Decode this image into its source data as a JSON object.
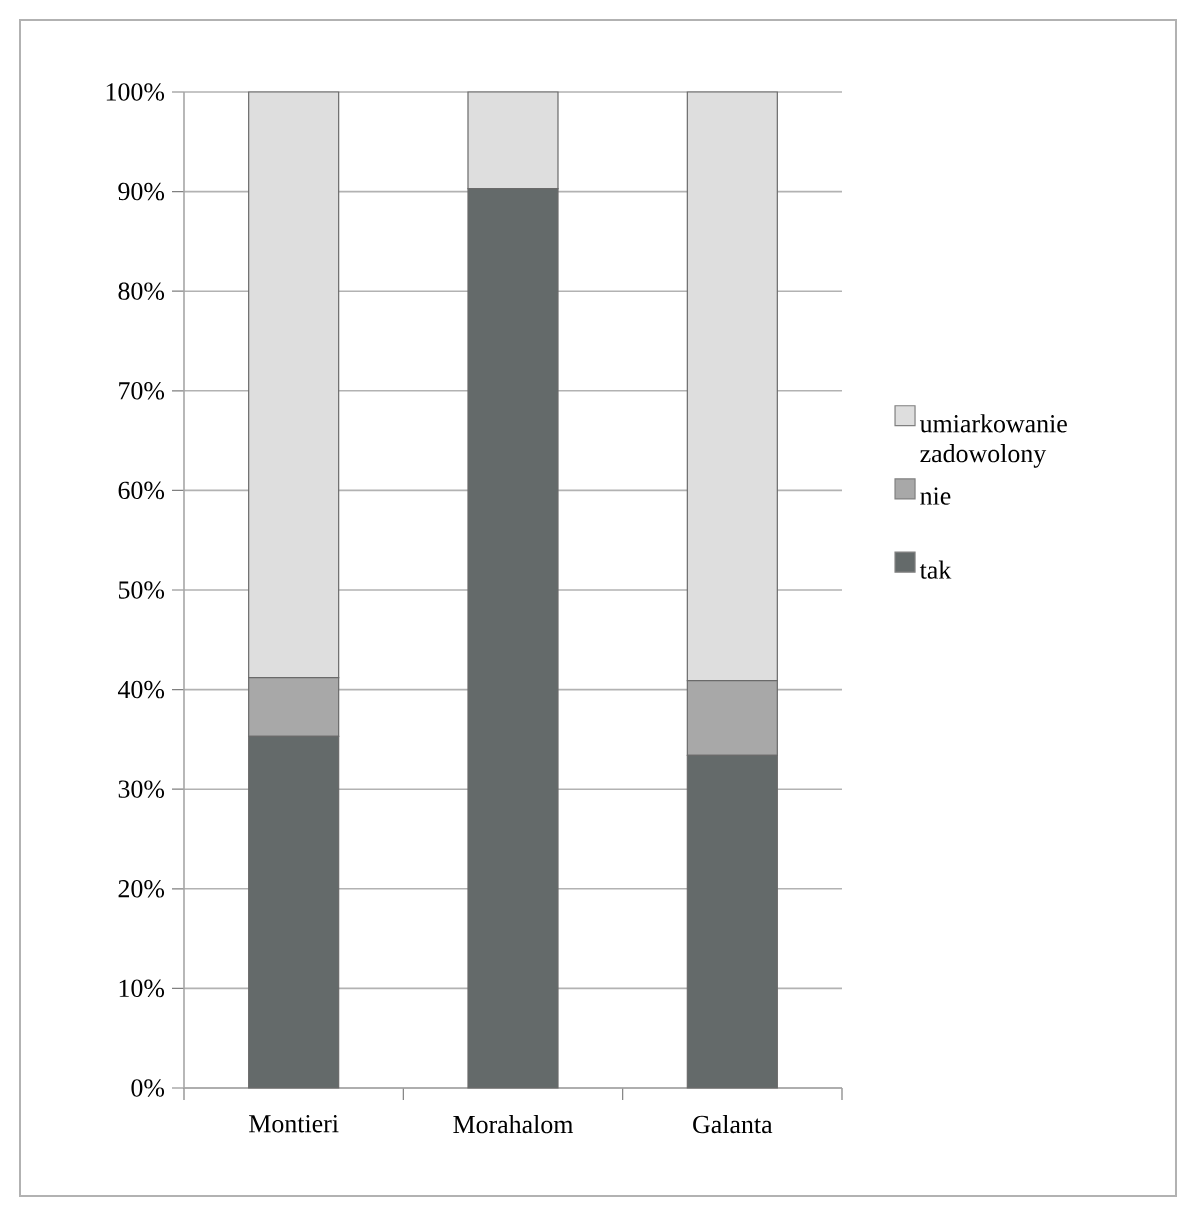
{
  "chart_data": {
    "type": "bar",
    "stacked": true,
    "categories": [
      "Montieri",
      "Morahalom",
      "Galanta"
    ],
    "series": [
      {
        "name": "tak",
        "color": "#646a6a",
        "values": [
          35.3,
          90.3,
          33.4
        ]
      },
      {
        "name": "nie",
        "color": "#a8a8a8",
        "values": [
          5.9,
          0,
          7.5
        ]
      },
      {
        "name": "umiarkowanie zadowolony",
        "color": "#dedede",
        "values": [
          58.8,
          9.7,
          59.1
        ]
      }
    ],
    "ylim": [
      0,
      100
    ],
    "yticks": [
      {
        "value": 0,
        "label": "0%"
      },
      {
        "value": 10,
        "label": "10%"
      },
      {
        "value": 20,
        "label": "20%"
      },
      {
        "value": 30,
        "label": "30%"
      },
      {
        "value": 40,
        "label": "40%"
      },
      {
        "value": 50,
        "label": "50%"
      },
      {
        "value": 60,
        "label": "60%"
      },
      {
        "value": 70,
        "label": "70%"
      },
      {
        "value": 80,
        "label": "80%"
      },
      {
        "value": 90,
        "label": "90%"
      },
      {
        "value": 100,
        "label": "100%"
      }
    ],
    "grid": "y",
    "legend": "right"
  }
}
